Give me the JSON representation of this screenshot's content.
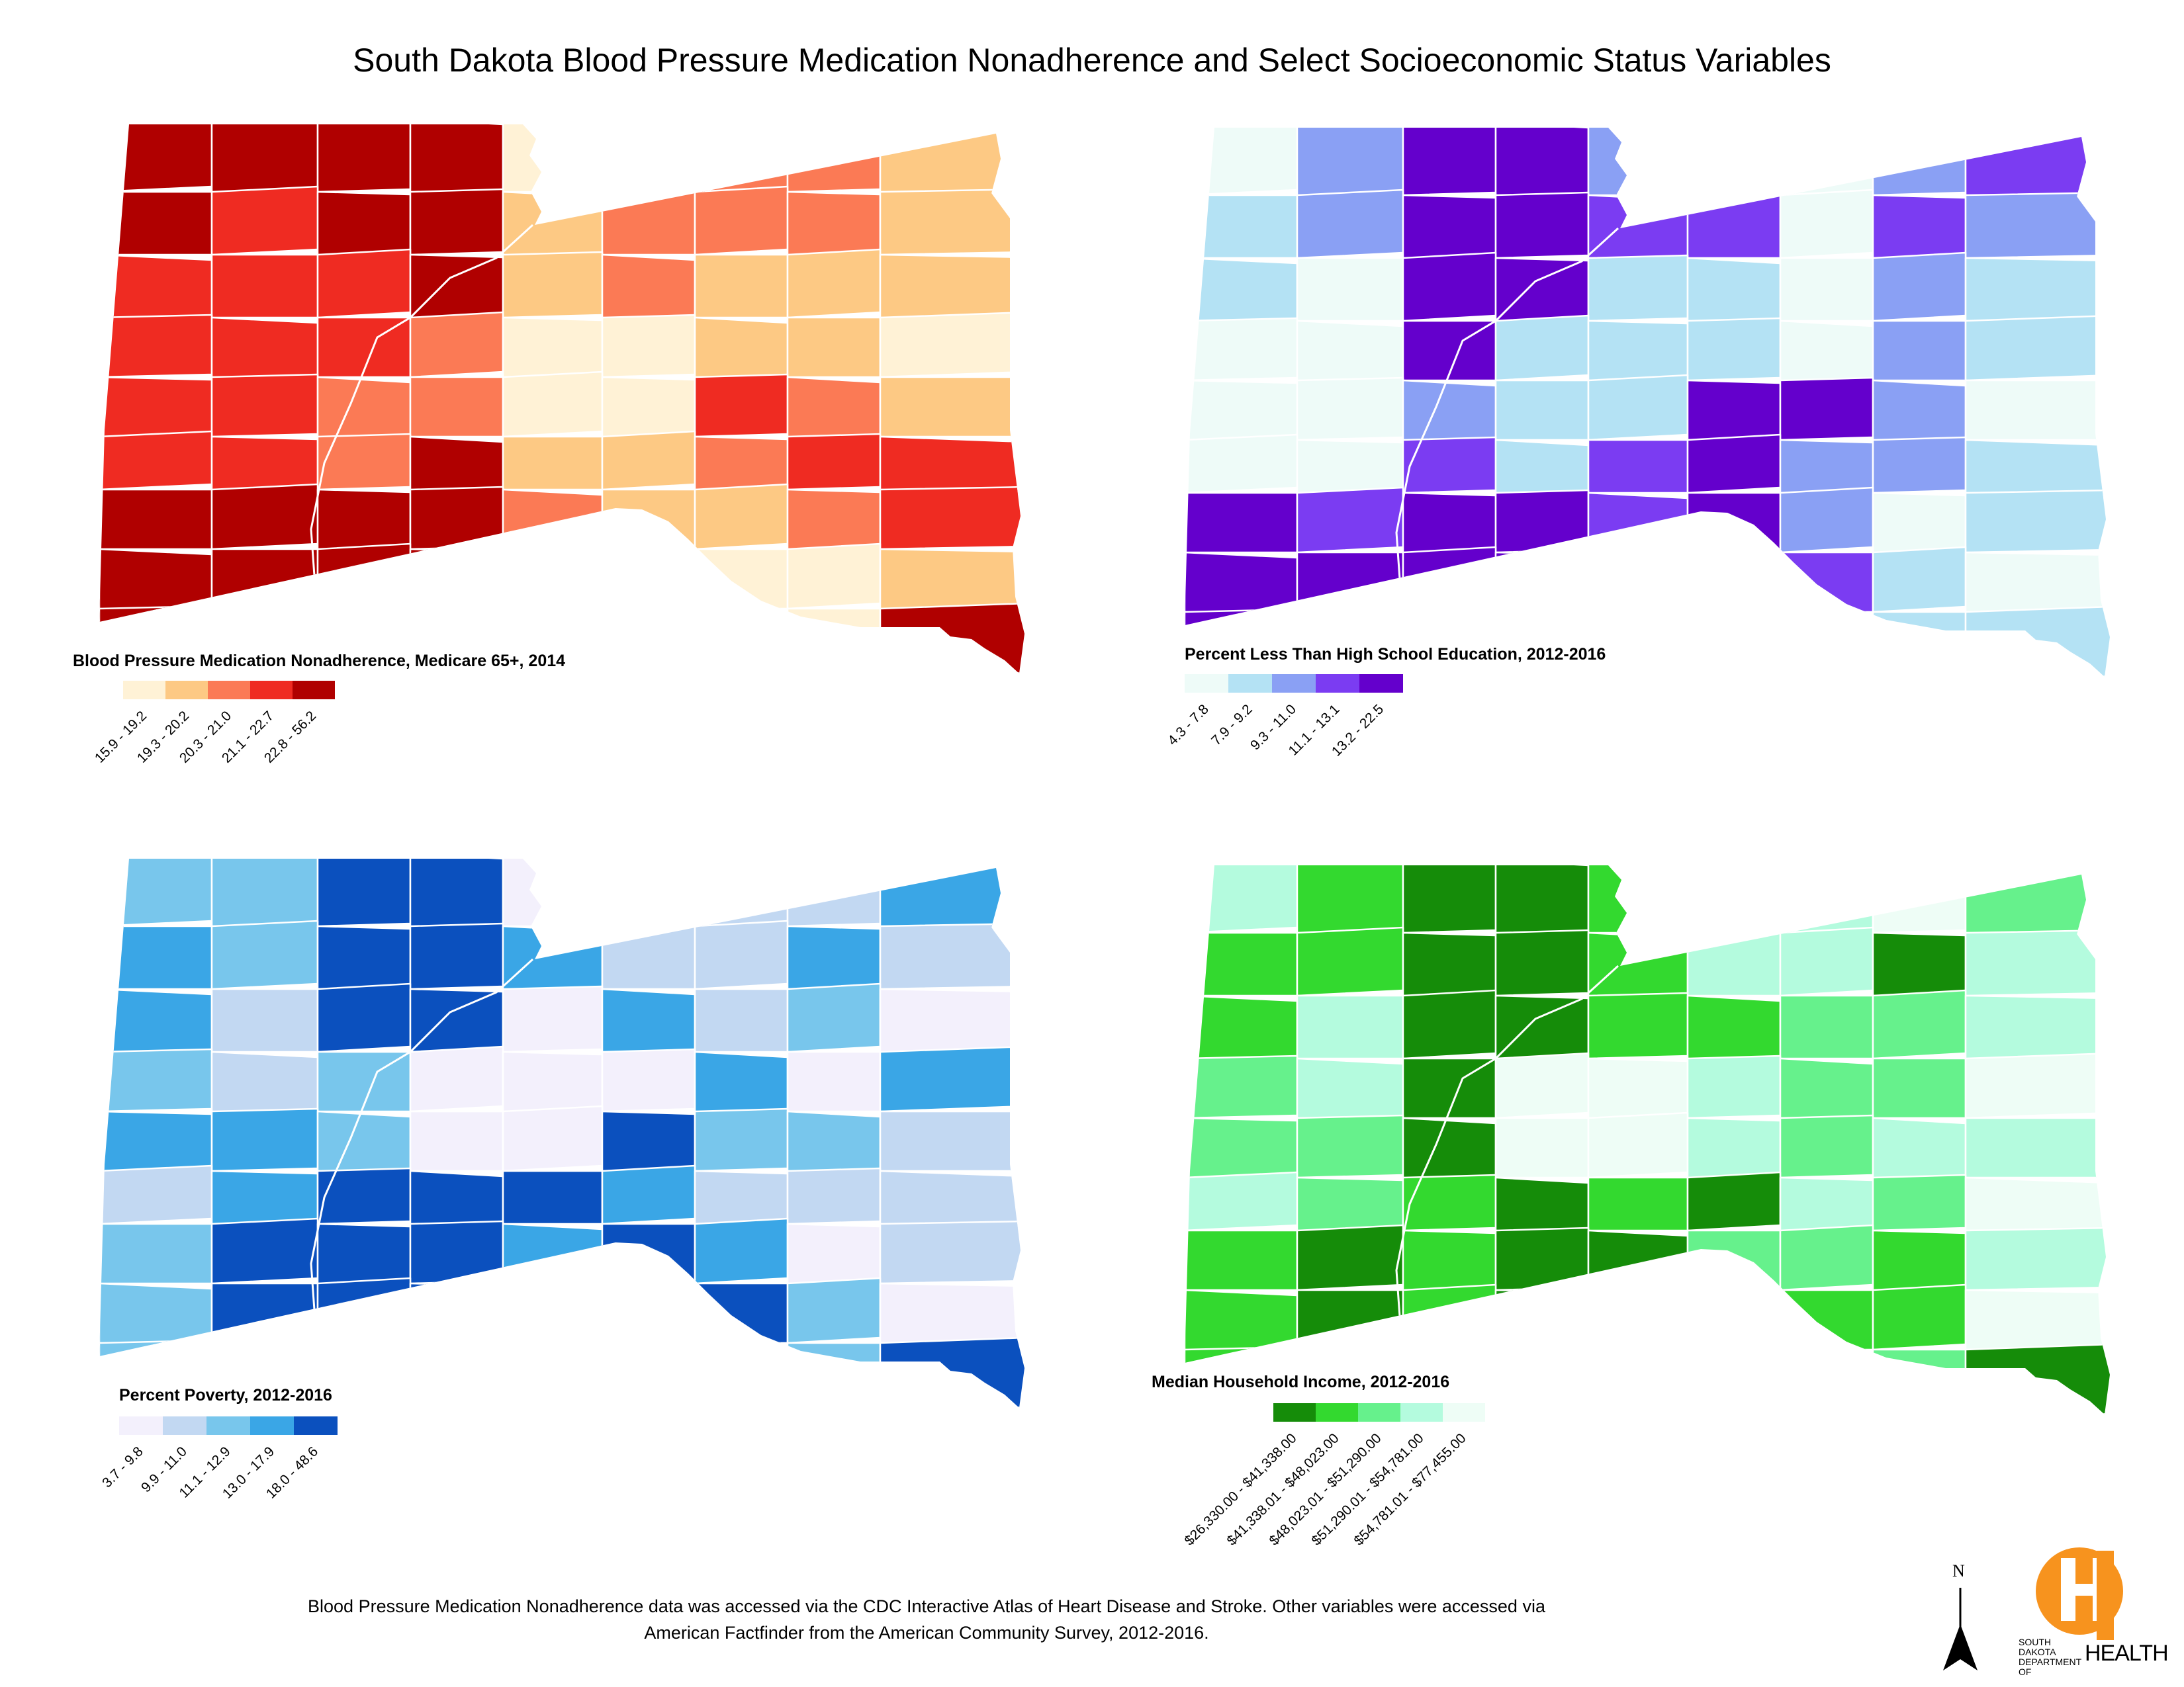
{
  "title": "South Dakota Blood Pressure Medication Nonadherence and Select Socioeconomic Status Variables",
  "maps": [
    {
      "id": "nonadherence",
      "legend_title": "Blood Pressure Medication Nonadherence, Medicare 65+, 2014",
      "classes": [
        {
          "label": "15.9 - 19.2",
          "color": "#fff2d6"
        },
        {
          "label": "19.3 - 20.2",
          "color": "#fdc984"
        },
        {
          "label": "20.3 - 21.0",
          "color": "#fb7a55"
        },
        {
          "label": "21.1 - 22.7",
          "color": "#ef2b22"
        },
        {
          "label": "22.8 - 56.2",
          "color": "#b00000"
        }
      ],
      "grid": [
        [
          4,
          4,
          4,
          4,
          0,
          0,
          2,
          2,
          1
        ],
        [
          4,
          3,
          4,
          4,
          1,
          2,
          2,
          2,
          1
        ],
        [
          3,
          3,
          3,
          4,
          1,
          2,
          1,
          1,
          1
        ],
        [
          3,
          3,
          3,
          2,
          0,
          0,
          1,
          1,
          0
        ],
        [
          3,
          3,
          2,
          2,
          0,
          0,
          3,
          2,
          1
        ],
        [
          3,
          3,
          2,
          4,
          1,
          1,
          2,
          3,
          3
        ],
        [
          4,
          4,
          4,
          4,
          2,
          1,
          1,
          2,
          3
        ],
        [
          4,
          4,
          4,
          4,
          2,
          2,
          0,
          0,
          1
        ],
        [
          4,
          4,
          4,
          4,
          2,
          2,
          0,
          0,
          4
        ]
      ]
    },
    {
      "id": "education",
      "legend_title": "Percent Less Than High School Education, 2012-2016",
      "classes": [
        {
          "label": "4.3 - 7.8",
          "color": "#eefbf8"
        },
        {
          "label": "7.9 - 9.2",
          "color": "#b4e2f4"
        },
        {
          "label": "9.3 - 11.0",
          "color": "#8aa0f4"
        },
        {
          "label": "11.1 - 13.1",
          "color": "#7b3cf2"
        },
        {
          "label": "13.2 - 22.5",
          "color": "#6400cc"
        }
      ],
      "grid": [
        [
          0,
          2,
          4,
          4,
          2,
          4,
          0,
          2,
          3
        ],
        [
          1,
          2,
          4,
          4,
          3,
          3,
          0,
          3,
          2
        ],
        [
          1,
          0,
          4,
          4,
          1,
          1,
          0,
          2,
          1
        ],
        [
          0,
          0,
          4,
          1,
          1,
          1,
          0,
          2,
          1
        ],
        [
          0,
          0,
          2,
          1,
          1,
          4,
          4,
          2,
          0
        ],
        [
          0,
          0,
          3,
          1,
          3,
          4,
          2,
          2,
          1
        ],
        [
          4,
          3,
          4,
          4,
          3,
          4,
          2,
          0,
          1
        ],
        [
          4,
          4,
          4,
          4,
          3,
          3,
          3,
          1,
          0
        ],
        [
          4,
          4,
          4,
          4,
          3,
          3,
          2,
          1,
          1
        ]
      ]
    },
    {
      "id": "poverty",
      "legend_title": "Percent Poverty, 2012-2016",
      "classes": [
        {
          "label": "3.7 - 9.8",
          "color": "#f3f0fc"
        },
        {
          "label": "9.9 - 11.0",
          "color": "#c2d8f2"
        },
        {
          "label": "11.1 - 12.9",
          "color": "#78c6ec"
        },
        {
          "label": "13.0 - 17.9",
          "color": "#3aa6e6"
        },
        {
          "label": "18.0 - 48.6",
          "color": "#0b50be"
        }
      ],
      "grid": [
        [
          2,
          2,
          4,
          4,
          0,
          3,
          1,
          1,
          3
        ],
        [
          3,
          2,
          4,
          4,
          3,
          1,
          1,
          3,
          1
        ],
        [
          3,
          1,
          4,
          4,
          0,
          3,
          1,
          2,
          0
        ],
        [
          2,
          1,
          2,
          0,
          0,
          0,
          3,
          0,
          3
        ],
        [
          3,
          3,
          2,
          0,
          0,
          4,
          2,
          2,
          1
        ],
        [
          1,
          3,
          4,
          4,
          4,
          3,
          1,
          1,
          1
        ],
        [
          2,
          4,
          4,
          4,
          3,
          4,
          3,
          0,
          1
        ],
        [
          2,
          4,
          4,
          4,
          3,
          3,
          4,
          2,
          0
        ],
        [
          2,
          4,
          4,
          4,
          3,
          3,
          2,
          2,
          4
        ]
      ]
    },
    {
      "id": "income",
      "legend_title": "Median Household Income, 2012-2016",
      "classes": [
        {
          "label": "$26,330.00 - $41,338.00",
          "color": "#158c09"
        },
        {
          "label": "$41,338.01 - $48,023.00",
          "color": "#33d92f"
        },
        {
          "label": "$48,023.01 - $51,290.00",
          "color": "#66f18c"
        },
        {
          "label": "$51,290.01 - $54,781.00",
          "color": "#b4fbde"
        },
        {
          "label": "$54,781.01 - $77,455.00",
          "color": "#eefdf6"
        }
      ],
      "grid": [
        [
          3,
          1,
          0,
          0,
          1,
          0,
          3,
          4,
          2
        ],
        [
          1,
          1,
          0,
          0,
          1,
          3,
          3,
          0,
          3
        ],
        [
          1,
          3,
          0,
          0,
          1,
          1,
          2,
          2,
          3
        ],
        [
          2,
          3,
          0,
          4,
          4,
          3,
          2,
          2,
          4
        ],
        [
          2,
          2,
          0,
          4,
          4,
          3,
          2,
          3,
          3
        ],
        [
          3,
          2,
          1,
          0,
          1,
          0,
          3,
          2,
          4
        ],
        [
          1,
          0,
          1,
          0,
          0,
          2,
          2,
          1,
          3
        ],
        [
          1,
          0,
          1,
          0,
          0,
          0,
          1,
          1,
          4
        ],
        [
          1,
          0,
          1,
          0,
          0,
          0,
          1,
          2,
          0
        ]
      ]
    }
  ],
  "footnote_line1": "Blood Pressure Medication Nonadherence data was accessed via the CDC Interactive Atlas of Heart Disease and Stroke.  Other variables were accessed via",
  "footnote_line2": "American Factfinder from the American Community Survey, 2012-2016.",
  "north_label": "N",
  "logo": {
    "small_text_line1": "SOUTH DAKOTA",
    "small_text_line2": "DEPARTMENT OF",
    "big_text": "HEALTH",
    "color": "#f7931e"
  }
}
